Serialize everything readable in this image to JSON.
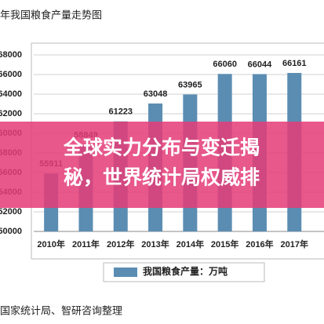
{
  "chart_data": {
    "type": "bar",
    "title": "年我国粮食产量走势图",
    "categories": [
      "2010年",
      "2011年",
      "2012年",
      "2013年",
      "2014年",
      "2015年",
      "2016年",
      "2017年"
    ],
    "series": [
      {
        "name": "我国粮食产量：万吨",
        "color": "#5b8db3",
        "values": [
          55911,
          58849,
          61223,
          63048,
          63965,
          66060,
          66044,
          66161
        ]
      }
    ],
    "ylim": [
      50000,
      68800
    ],
    "yticks": [
      50000,
      52000,
      54000,
      56000,
      58000,
      60000,
      62000,
      64000,
      66000,
      68000
    ],
    "grid": true,
    "source": "国家统计局、智研咨询整理"
  },
  "banner": {
    "lines": [
      "全球实力分布与变迁揭",
      "秘，世界统计局权威排"
    ]
  }
}
